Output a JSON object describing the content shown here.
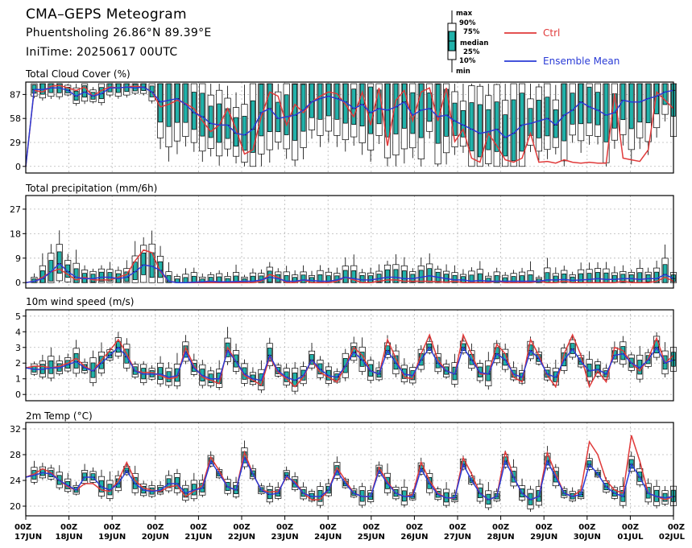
{
  "header": {
    "title": "CMA–GEPS Meteogram",
    "location": "Phuentsholing 26.86°N 89.39°E",
    "init_time": "IniTime: 20250617 00UTC"
  },
  "legend": {
    "box_labels": [
      "max",
      "90%",
      "75%",
      "median",
      "25%",
      "10%",
      "min"
    ],
    "ctrl_label": "Ctrl",
    "mean_label": "Ensemble Mean",
    "ctrl_color": "#e03a3a",
    "mean_color": "#2a3bd6",
    "box_color": "#20b2aa"
  },
  "x_axis": {
    "tick_labels": [
      {
        "hour": "00Z",
        "date": "17JUN"
      },
      {
        "hour": "00Z",
        "date": "18JUN"
      },
      {
        "hour": "00Z",
        "date": "19JUN"
      },
      {
        "hour": "00Z",
        "date": "20JUN"
      },
      {
        "hour": "00Z",
        "date": "21JUN"
      },
      {
        "hour": "00Z",
        "date": "22JUN"
      },
      {
        "hour": "00Z",
        "date": "23JUN"
      },
      {
        "hour": "00Z",
        "date": "24JUN"
      },
      {
        "hour": "00Z",
        "date": "25JUN"
      },
      {
        "hour": "00Z",
        "date": "26JUN"
      },
      {
        "hour": "00Z",
        "date": "27JUN"
      },
      {
        "hour": "00Z",
        "date": "28JUN"
      },
      {
        "hour": "00Z",
        "date": "29JUN"
      },
      {
        "hour": "00Z",
        "date": "30JUN"
      },
      {
        "hour": "00Z",
        "date": "01JUL"
      },
      {
        "hour": "00Z",
        "date": "02JUL"
      }
    ]
  },
  "chart_data": [
    {
      "type": "line",
      "title": "Total Cloud Cover (%)",
      "ylim": [
        -8,
        102
      ],
      "yticks": [
        0,
        29,
        58,
        87
      ],
      "grid": true,
      "series": [
        {
          "name": "Ctrl",
          "values": [
            0,
            92,
            90,
            97,
            98,
            95,
            92,
            96,
            85,
            92,
            96,
            95,
            96,
            97,
            96,
            90,
            72,
            75,
            80,
            76,
            70,
            55,
            42,
            50,
            70,
            45,
            15,
            20,
            60,
            90,
            85,
            50,
            75,
            65,
            78,
            85,
            90,
            88,
            75,
            60,
            90,
            50,
            95,
            25,
            80,
            92,
            55,
            90,
            95,
            55,
            95,
            30,
            45,
            10,
            5,
            40,
            25,
            8,
            5,
            10,
            40,
            5,
            6,
            4,
            8,
            5,
            4,
            5,
            4,
            4,
            88,
            10,
            8,
            6,
            20,
            90,
            80,
            70
          ]
        },
        {
          "name": "Ensemble Mean",
          "values": [
            0,
            93,
            93,
            95,
            95,
            92,
            85,
            90,
            85,
            88,
            95,
            95,
            96,
            95,
            96,
            90,
            78,
            80,
            82,
            75,
            65,
            60,
            52,
            50,
            50,
            40,
            38,
            45,
            65,
            70,
            58,
            60,
            62,
            68,
            78,
            82,
            85,
            82,
            78,
            70,
            75,
            65,
            70,
            68,
            72,
            78,
            62,
            68,
            70,
            60,
            62,
            55,
            50,
            45,
            40,
            42,
            45,
            35,
            40,
            50,
            52,
            55,
            58,
            50,
            62,
            68,
            78,
            72,
            68,
            62,
            65,
            80,
            78,
            78,
            82,
            85,
            90,
            92
          ]
        }
      ]
    },
    {
      "type": "line",
      "title": "Total precipitation (mm/6h)",
      "ylim": [
        -2,
        32
      ],
      "yticks": [
        0,
        9,
        18,
        27
      ],
      "grid": true,
      "series": [
        {
          "name": "Ctrl",
          "values": [
            0,
            0.5,
            2,
            4,
            5,
            3,
            1,
            2,
            1,
            1,
            1,
            2,
            3,
            8,
            12,
            11,
            4,
            0.5,
            0,
            0,
            0,
            0,
            0,
            0,
            0,
            0,
            0,
            0,
            0.5,
            3,
            2,
            0,
            0,
            1,
            0,
            0,
            0,
            0.5,
            2,
            1,
            0,
            0,
            0.5,
            1,
            1,
            0.5,
            0.5,
            0.5,
            0.5,
            0.3,
            0.2,
            0.5,
            0,
            0,
            0,
            0,
            0.5,
            0,
            0,
            0,
            0,
            0.5,
            0,
            0,
            0.5,
            0,
            0,
            0,
            0,
            0,
            0,
            0.5,
            0,
            0,
            0,
            0.5,
            2,
            0.5
          ]
        },
        {
          "name": "Ensemble Mean",
          "values": [
            0,
            0.5,
            1.5,
            4,
            7,
            4,
            2,
            1.5,
            1.5,
            2,
            2,
            1.5,
            2,
            4,
            6.5,
            6,
            4.5,
            0.5,
            0,
            0,
            0.2,
            0.3,
            0.5,
            0.3,
            0.3,
            0.4,
            0.5,
            0.5,
            1,
            2,
            1.5,
            0.5,
            0.5,
            1,
            0.8,
            0.5,
            0.5,
            1,
            2,
            1.5,
            1,
            1,
            1.5,
            2,
            2,
            1.5,
            1.5,
            2,
            2.5,
            2,
            1.5,
            1,
            1,
            0.5,
            0.8,
            0.5,
            0.5,
            0.5,
            0.5,
            0.5,
            0.5,
            0.5,
            1,
            1,
            1.2,
            0.8,
            1,
            1.2,
            1.5,
            1.2,
            1.2,
            1.5,
            1.5,
            1.2,
            1.5,
            1.5,
            3,
            1.5
          ]
        }
      ]
    },
    {
      "type": "line",
      "title": "10m wind speed (m/s)",
      "ylim": [
        -0.4,
        5.4
      ],
      "yticks": [
        0,
        1,
        2,
        3,
        4,
        5
      ],
      "grid": true,
      "series": [
        {
          "name": "Ctrl",
          "values": [
            1.7,
            1.8,
            1.8,
            1.7,
            1.8,
            2.0,
            2.3,
            1.8,
            1.5,
            2.2,
            2.8,
            3.5,
            2.6,
            1.5,
            1.4,
            1.4,
            1.2,
            1.0,
            1.1,
            3.0,
            1.8,
            1.1,
            0.9,
            0.7,
            3.0,
            2.1,
            1.2,
            0.9,
            0.6,
            2.4,
            1.4,
            1.0,
            0.5,
            1.1,
            2.2,
            1.4,
            1.1,
            0.8,
            1.8,
            3.0,
            2.5,
            1.5,
            1.3,
            3.5,
            2.3,
            1.1,
            1.0,
            2.6,
            3.8,
            2.2,
            1.5,
            1.3,
            3.8,
            2.6,
            1.3,
            1.3,
            3.2,
            2.6,
            1.1,
            0.8,
            3.5,
            2.5,
            1.2,
            0.5,
            2.6,
            3.8,
            2.5,
            0.5,
            1.5,
            0.8,
            3.0,
            2.8,
            2.0,
            1.5,
            2.3,
            3.6,
            2.0,
            2.5
          ]
        },
        {
          "name": "Ensemble Mean",
          "values": [
            1.7,
            1.6,
            1.6,
            1.7,
            1.7,
            1.9,
            2.1,
            1.7,
            1.5,
            2.0,
            2.5,
            3.0,
            2.4,
            1.5,
            1.3,
            1.3,
            1.3,
            1.1,
            1.2,
            2.7,
            1.7,
            1.2,
            1.0,
            1.0,
            2.8,
            2.1,
            1.3,
            1.0,
            0.9,
            2.5,
            1.5,
            1.1,
            0.9,
            1.2,
            2.2,
            1.6,
            1.2,
            1.1,
            1.8,
            2.7,
            2.2,
            1.5,
            1.3,
            2.8,
            2.0,
            1.3,
            1.2,
            2.2,
            3.0,
            2.0,
            1.5,
            1.3,
            3.0,
            2.2,
            1.4,
            1.3,
            2.6,
            2.2,
            1.3,
            1.1,
            2.8,
            2.3,
            1.3,
            1.1,
            2.2,
            2.9,
            2.1,
            1.5,
            1.6,
            1.3,
            2.5,
            2.6,
            2.0,
            1.7,
            2.2,
            3.0,
            2.0,
            2.2
          ]
        }
      ]
    },
    {
      "type": "line",
      "title": "2m Temp (°C)",
      "ylim": [
        18.5,
        33
      ],
      "yticks": [
        20,
        24,
        28,
        32
      ],
      "grid": true,
      "series": [
        {
          "name": "Ctrl",
          "values": [
            24.5,
            25.0,
            25.8,
            25.2,
            24.0,
            23.0,
            22.5,
            23.5,
            23.5,
            22.5,
            22.3,
            24.0,
            26.8,
            24.0,
            22.8,
            22.5,
            22.3,
            23.0,
            23.2,
            21.5,
            22.3,
            23.2,
            27.6,
            25.5,
            23.0,
            22.5,
            28.4,
            25.0,
            22.5,
            22.2,
            22.3,
            24.5,
            23.8,
            22.0,
            21.0,
            21.0,
            22.5,
            26.0,
            24.0,
            22.0,
            21.5,
            21.5,
            26.0,
            23.8,
            22.0,
            21.5,
            21.8,
            26.8,
            24.0,
            22.0,
            21.3,
            21.2,
            27.5,
            25.0,
            22.0,
            21.0,
            21.5,
            28.5,
            24.5,
            22.0,
            21.0,
            21.5,
            28.3,
            25.0,
            22.0,
            21.5,
            22.5,
            30.0,
            28.0,
            24.0,
            22.5,
            22.0,
            31.0,
            27.0,
            22.0,
            21.5,
            21.0,
            21.5
          ]
        },
        {
          "name": "Ensemble Mean",
          "values": [
            24.5,
            24.8,
            25.2,
            25.0,
            24.0,
            23.2,
            22.5,
            24.5,
            24.5,
            23.0,
            22.5,
            23.5,
            25.5,
            23.5,
            22.5,
            22.3,
            22.5,
            23.5,
            23.5,
            22.0,
            22.5,
            22.8,
            27.0,
            25.0,
            23.0,
            22.5,
            27.5,
            25.0,
            22.5,
            21.8,
            22.0,
            24.8,
            23.5,
            22.0,
            21.5,
            21.5,
            22.5,
            25.5,
            23.5,
            22.0,
            21.5,
            21.5,
            25.5,
            23.5,
            22.0,
            21.5,
            21.5,
            25.8,
            23.5,
            21.8,
            21.3,
            21.3,
            26.5,
            24.0,
            22.0,
            21.0,
            21.5,
            27.0,
            24.5,
            22.0,
            21.0,
            21.5,
            27.0,
            24.5,
            22.0,
            21.5,
            21.8,
            26.5,
            25.0,
            23.0,
            22.0,
            21.5,
            26.5,
            24.5,
            22.0,
            21.5,
            21.3,
            21.5
          ]
        }
      ]
    }
  ]
}
